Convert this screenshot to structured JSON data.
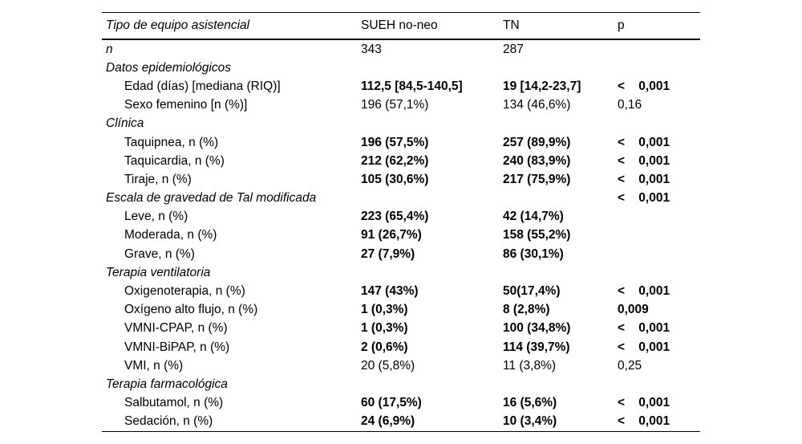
{
  "table": {
    "columns": [
      "Tipo de equipo asistencial",
      "SUEH no-neo",
      "TN",
      "p"
    ],
    "rows": [
      {
        "label": "n",
        "italic": true,
        "indent": false,
        "sueh": "343",
        "tn": "287",
        "p": "",
        "bold": false,
        "p_bold": false
      },
      {
        "label": "Datos epidemiológicos",
        "italic": true,
        "indent": false,
        "sueh": "",
        "tn": "",
        "p": "",
        "bold": false,
        "p_bold": false
      },
      {
        "label": "Edad (días) [mediana (RIQ)]",
        "italic": false,
        "indent": true,
        "sueh": "112,5 [84,5-140,5]",
        "tn": "19 [14,2-23,7]",
        "p": "<    0,001",
        "bold": true,
        "p_bold": true
      },
      {
        "label": "Sexo femenino [n (%)]",
        "italic": false,
        "indent": true,
        "sueh": "196 (57,1%)",
        "tn": "134 (46,6%)",
        "p": "0,16",
        "bold": false,
        "p_bold": false
      },
      {
        "label": "Clínica",
        "italic": true,
        "indent": false,
        "sueh": "",
        "tn": "",
        "p": "",
        "bold": false,
        "p_bold": false
      },
      {
        "label": "Taquipnea, n (%)",
        "italic": false,
        "indent": true,
        "sueh": "196 (57,5%)",
        "tn": "257 (89,9%)",
        "p": "<    0,001",
        "bold": true,
        "p_bold": true
      },
      {
        "label": "Taquicardia, n (%)",
        "italic": false,
        "indent": true,
        "sueh": "212 (62,2%)",
        "tn": "240 (83,9%)",
        "p": "<    0,001",
        "bold": true,
        "p_bold": true
      },
      {
        "label": "Tiraje, n (%)",
        "italic": false,
        "indent": true,
        "sueh": "105 (30,6%)",
        "tn": "217 (75,9%)",
        "p": "<    0,001",
        "bold": true,
        "p_bold": true
      },
      {
        "label": "Escala de gravedad de Tal modificada",
        "italic": true,
        "indent": false,
        "sueh": "",
        "tn": "",
        "p": "<    0,001",
        "bold": false,
        "p_bold": true
      },
      {
        "label": "Leve, n (%)",
        "italic": false,
        "indent": true,
        "sueh": "223 (65,4%)",
        "tn": "42 (14,7%)",
        "p": "",
        "bold": true,
        "p_bold": false
      },
      {
        "label": "Moderada, n (%)",
        "italic": false,
        "indent": true,
        "sueh": "91 (26,7%)",
        "tn": "158 (55,2%)",
        "p": "",
        "bold": true,
        "p_bold": false
      },
      {
        "label": "Grave, n (%)",
        "italic": false,
        "indent": true,
        "sueh": "27 (7,9%)",
        "tn": "86 (30,1%)",
        "p": "",
        "bold": true,
        "p_bold": false
      },
      {
        "label": "Terapia ventilatoria",
        "italic": true,
        "indent": false,
        "sueh": "",
        "tn": "",
        "p": "",
        "bold": false,
        "p_bold": false
      },
      {
        "label": "Oxigenoterapia, n (%)",
        "italic": false,
        "indent": true,
        "sueh": "147 (43%)",
        "tn": "50(17,4%)",
        "p": "<    0,001",
        "bold": true,
        "p_bold": true
      },
      {
        "label": "Oxígeno alto flujo, n (%)",
        "italic": false,
        "indent": true,
        "sueh": "1 (0,3%)",
        "tn": "8 (2,8%)",
        "p": "0,009",
        "bold": true,
        "p_bold": true
      },
      {
        "label": "VMNI-CPAP, n (%)",
        "italic": false,
        "indent": true,
        "sueh": "1 (0,3%)",
        "tn": "100 (34,8%)",
        "p": "<    0,001",
        "bold": true,
        "p_bold": true
      },
      {
        "label": "VMNI-BiPAP, n (%)",
        "italic": false,
        "indent": true,
        "sueh": "2 (0,6%)",
        "tn": "114 (39,7%)",
        "p": "<    0,001",
        "bold": true,
        "p_bold": true
      },
      {
        "label": "VMI, n (%)",
        "italic": false,
        "indent": true,
        "sueh": "20 (5,8%)",
        "tn": "11 (3,8%)",
        "p": "0,25",
        "bold": false,
        "p_bold": false
      },
      {
        "label": "Terapia farmacológica",
        "italic": true,
        "indent": false,
        "sueh": "",
        "tn": "",
        "p": "",
        "bold": false,
        "p_bold": false
      },
      {
        "label": "Salbutamol, n (%)",
        "italic": false,
        "indent": true,
        "sueh": "60 (17,5%)",
        "tn": "16 (5,6%)",
        "p": "<    0,001",
        "bold": true,
        "p_bold": true
      },
      {
        "label": "Sedación, n (%)",
        "italic": false,
        "indent": true,
        "sueh": "24 (6,9%)",
        "tn": "10 (3,4%)",
        "p": "<    0,001",
        "bold": true,
        "p_bold": true
      }
    ]
  }
}
